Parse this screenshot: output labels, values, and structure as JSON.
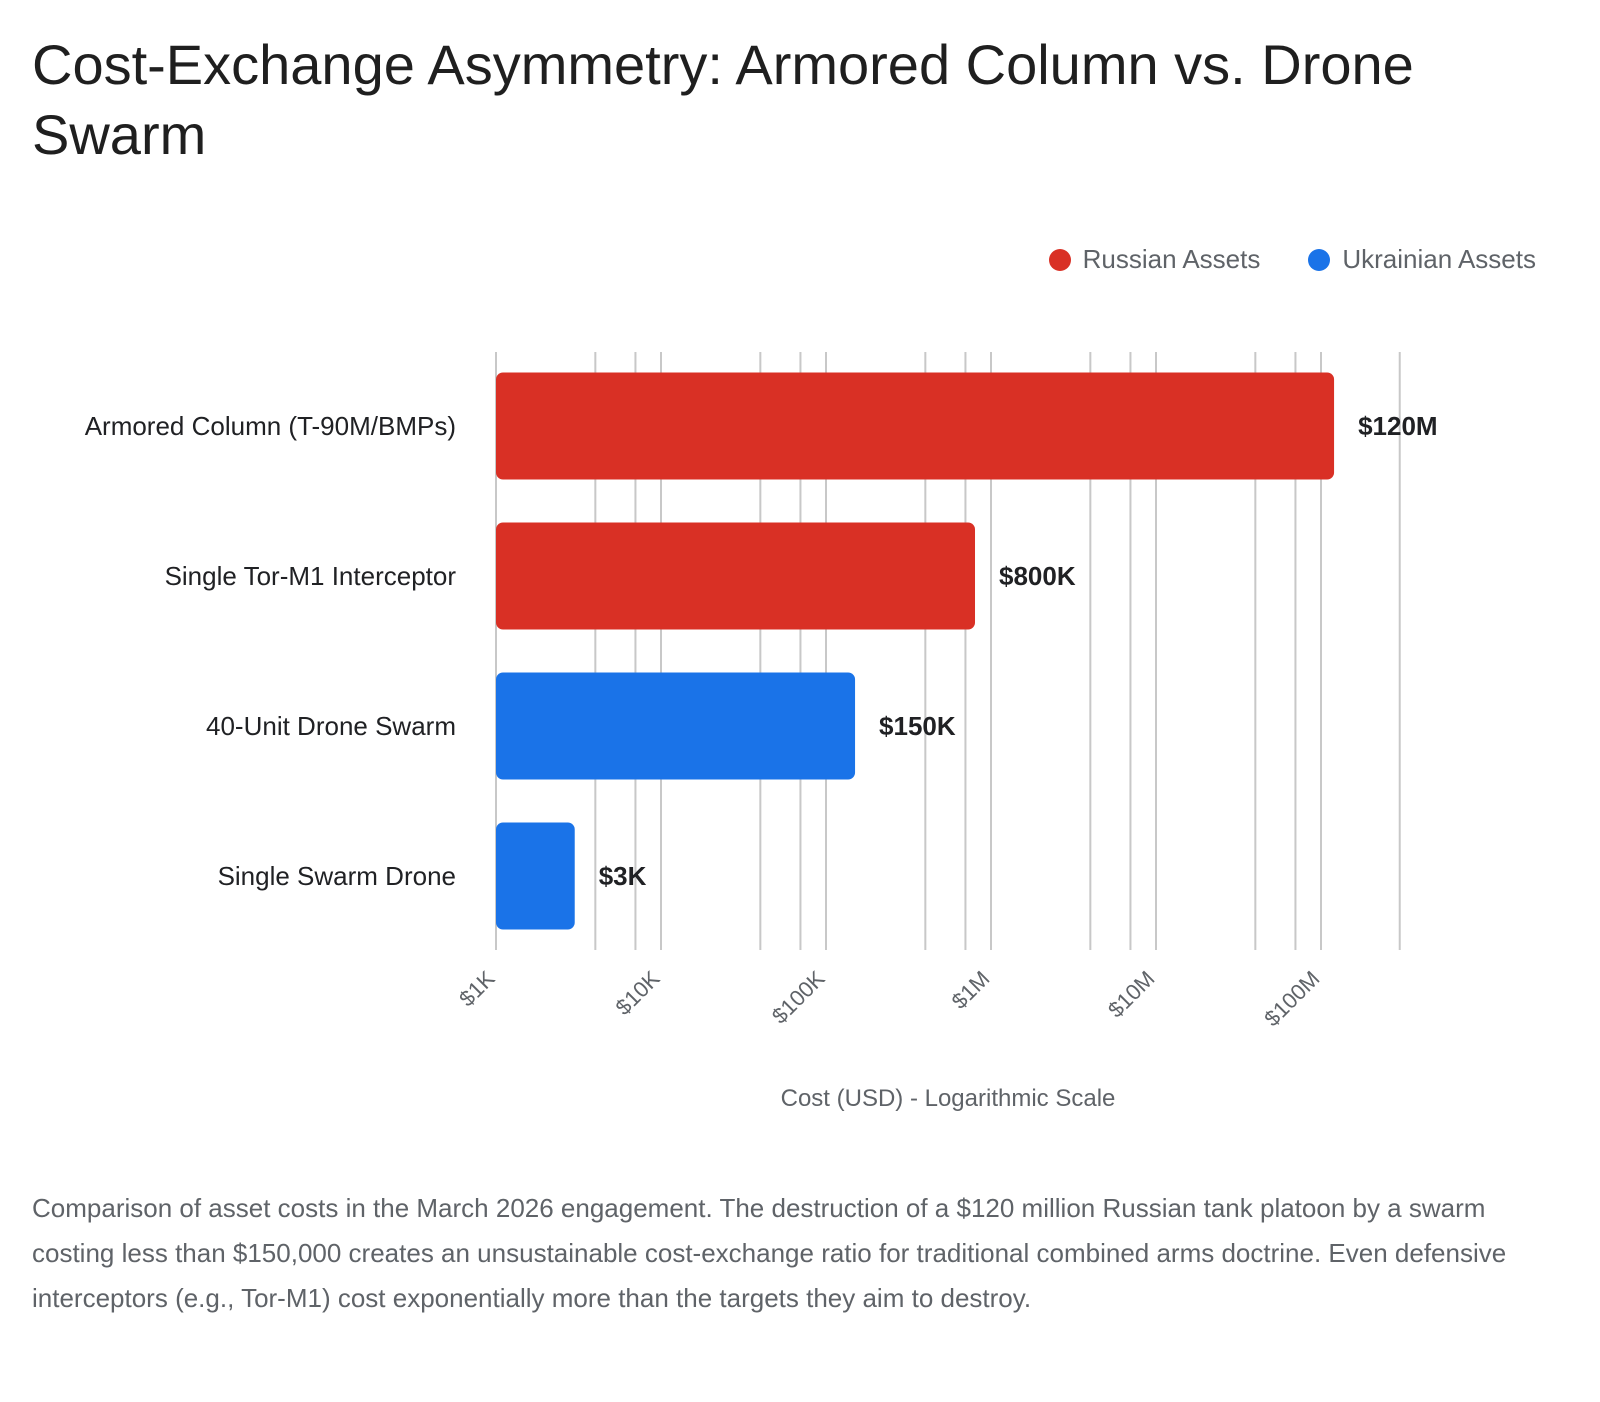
{
  "title": "Cost-Exchange Asymmetry: Armored Column vs. Drone Swarm",
  "legend": [
    {
      "label": "Russian Assets",
      "color": "#d93025"
    },
    {
      "label": "Ukrainian Assets",
      "color": "#1a73e8"
    }
  ],
  "chart_data": {
    "type": "bar",
    "orientation": "horizontal",
    "categories": [
      "Armored Column (T-90M/BMPs)",
      "Single Tor-M1 Interceptor",
      "40-Unit Drone Swarm",
      "Single Swarm Drone"
    ],
    "values": [
      120000000,
      800000,
      150000,
      3000
    ],
    "data_labels": [
      "$120M",
      "$800K",
      "$150K",
      "$3K"
    ],
    "groups": [
      "Russian Assets",
      "Russian Assets",
      "Ukrainian Assets",
      "Ukrainian Assets"
    ],
    "colors": [
      "#d93025",
      "#d93025",
      "#1a73e8",
      "#1a73e8"
    ],
    "xscale": "log",
    "xlim": [
      1000,
      300000000
    ],
    "xticks": [
      1000,
      10000,
      100000,
      1000000,
      10000000,
      100000000
    ],
    "xtick_labels": [
      "$1K",
      "$10K",
      "$100K",
      "$1M",
      "$10M",
      "$100M"
    ],
    "xlabel": "Cost (USD) - Logarithmic Scale",
    "ylabel": "",
    "grid": true,
    "legend_position": "top-right"
  },
  "caption": "Comparison of asset costs in the March 2026 engagement. The destruction of a $120 million Russian tank platoon by a swarm costing less than $150,000 creates an unsustainable cost-exchange ratio for traditional combined arms doctrine. Even defensive interceptors (e.g., Tor-M1) cost exponentially more than the targets they aim to destroy."
}
